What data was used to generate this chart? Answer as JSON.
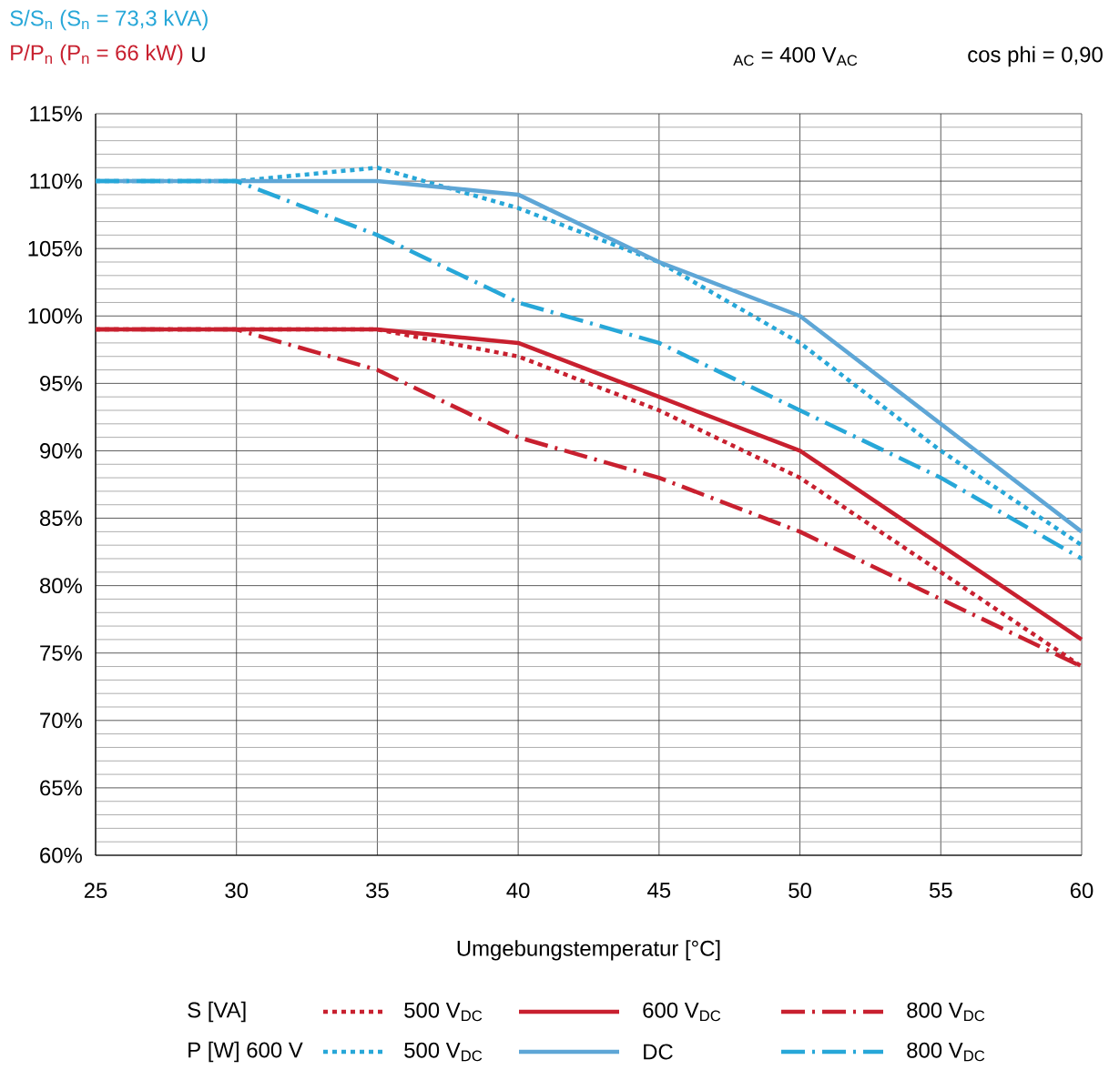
{
  "chart_data": {
    "type": "line",
    "xlabel": "Umgebungstemperatur [°C]",
    "x": [
      25,
      30,
      35,
      40,
      45,
      50,
      55,
      60
    ],
    "xlim": [
      25,
      60
    ],
    "xticks": [
      25,
      30,
      35,
      40,
      45,
      50,
      55,
      60
    ],
    "ylim": [
      60,
      115
    ],
    "yticks": [
      {
        "value": 60,
        "label": "60%"
      },
      {
        "value": 65,
        "label": "65%"
      },
      {
        "value": 70,
        "label": "70%"
      },
      {
        "value": 75,
        "label": "75%"
      },
      {
        "value": 80,
        "label": "80%"
      },
      {
        "value": 85,
        "label": "85%"
      },
      {
        "value": 90,
        "label": "90%"
      },
      {
        "value": 95,
        "label": "95%"
      },
      {
        "value": 100,
        "label": "100%"
      },
      {
        "value": 105,
        "label": "105%"
      },
      {
        "value": 110,
        "label": "110%"
      },
      {
        "value": 115,
        "label": "115%"
      }
    ],
    "grid": true,
    "legend": "bottom",
    "annotations": [
      "S/S$_{n}$ (S$_{n}$ = 73,3 kVA)",
      "P/P$_{n}$ (P$_{n}$ = 66 kW)",
      "U",
      "$_{AC}$ = 400 V$_{AC}$",
      "cos phi = 0,90",
      "S [VA]",
      "P [W] 600 V"
    ],
    "series": [
      {
        "name": "500 V$_{DC}$",
        "color": "#c8202f",
        "line_style": "dotted",
        "values": [
          99,
          99,
          99,
          97,
          93,
          88,
          81,
          74
        ]
      },
      {
        "name": "600 V$_{DC}$",
        "color": "#c8202f",
        "line_style": "solid",
        "values": [
          99,
          99,
          99,
          98,
          94,
          90,
          83,
          76
        ]
      },
      {
        "name": "800 V$_{DC}$",
        "color": "#c8202f",
        "line_style": "dashdot",
        "values": [
          99,
          99,
          96,
          91,
          88,
          84,
          79,
          74
        ]
      },
      {
        "name": "500 V$_{DC}$",
        "color": "#27a7d8",
        "line_style": "dotted",
        "values": [
          110,
          110,
          111,
          108,
          104,
          98,
          90,
          83
        ]
      },
      {
        "name": "DC",
        "color": "#5ea6d6",
        "line_style": "solid",
        "values": [
          110,
          110,
          110,
          109,
          104,
          100,
          92,
          84
        ]
      },
      {
        "name": "800 V$_{DC}$",
        "color": "#27a7d8",
        "line_style": "dashdot",
        "values": [
          110,
          110,
          106,
          101,
          98,
          93,
          88,
          82
        ]
      }
    ]
  }
}
